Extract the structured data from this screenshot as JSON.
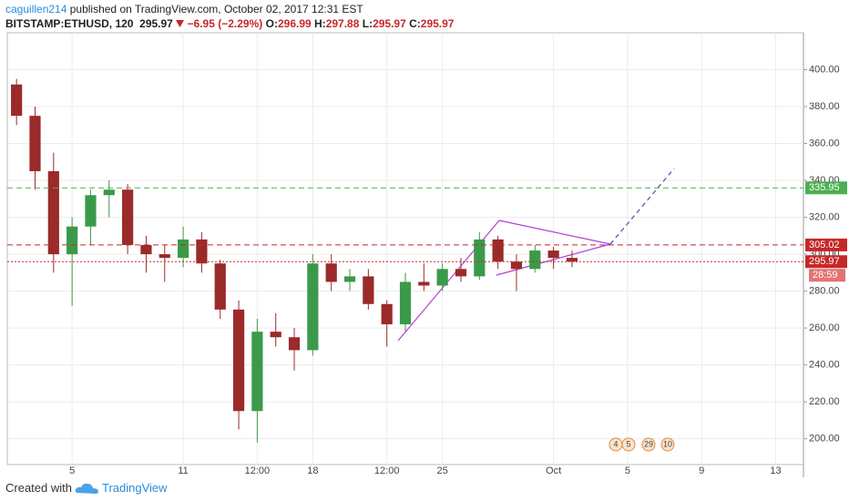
{
  "header": {
    "author": "caguillen214",
    "published": "published on TradingView.com, October 02, 2017 12:31 EST"
  },
  "chart_data": {
    "type": "candlestick",
    "quote": {
      "symbol": "BITSTAMP:ETHUSD, 120",
      "last": 295.97,
      "change": "−6.95",
      "change_pct": "(−2.29%)",
      "open_label": "O:",
      "open": 296.99,
      "high_label": "H:",
      "high": 297.88,
      "low_label": "L:",
      "low": 295.97,
      "close_label": "C:",
      "close": 295.97
    },
    "categories": [
      null,
      null,
      null,
      "5",
      null,
      null,
      null,
      null,
      null,
      "11",
      null,
      null,
      null,
      "12:00",
      null,
      null,
      "18",
      null,
      null,
      null,
      "12:00",
      null,
      null,
      "25",
      null,
      null,
      null,
      null,
      null,
      "Oct",
      null,
      null,
      null,
      "5",
      null,
      null,
      null,
      "9",
      null,
      null,
      null,
      "13",
      null
    ],
    "open": [
      392,
      375,
      345,
      300,
      315,
      332,
      335,
      305,
      300,
      298,
      308,
      295,
      270,
      215,
      258,
      255,
      248,
      295,
      285,
      288,
      273,
      262,
      285,
      283,
      292,
      288,
      308,
      296,
      292,
      302,
      298,
      null,
      null,
      null,
      null,
      null,
      null,
      null,
      null,
      null,
      null,
      null,
      null
    ],
    "high": [
      395,
      380,
      355,
      320,
      335,
      340,
      338,
      310,
      305,
      315,
      312,
      297,
      275,
      265,
      268,
      260,
      300,
      300,
      292,
      292,
      275,
      290,
      295,
      295,
      298,
      312,
      310,
      300,
      305,
      304,
      302,
      null,
      null,
      null,
      null,
      null,
      null,
      null,
      null,
      null,
      null,
      null,
      null
    ],
    "low": [
      370,
      335,
      290,
      272,
      305,
      320,
      300,
      290,
      285,
      293,
      290,
      265,
      205,
      198,
      250,
      237,
      245,
      280,
      280,
      270,
      250,
      258,
      280,
      280,
      285,
      286,
      292,
      280,
      290,
      292,
      293,
      null,
      null,
      null,
      null,
      null,
      null,
      null,
      null,
      null,
      null,
      null,
      null
    ],
    "close": [
      375,
      345,
      300,
      315,
      332,
      335,
      305,
      300,
      298,
      308,
      295,
      270,
      215,
      258,
      255,
      248,
      295,
      285,
      288,
      273,
      262,
      285,
      283,
      292,
      288,
      308,
      296,
      292,
      302,
      298,
      295.97,
      null,
      null,
      null,
      null,
      null,
      null,
      null,
      null,
      null,
      null,
      null,
      null
    ],
    "up_color": "#3a9a4a",
    "down_color": "#9b2a2a",
    "ylim": [
      186,
      420
    ],
    "yticks": [
      {
        "value": 200,
        "label": "200.00"
      },
      {
        "value": 220,
        "label": "220.00"
      },
      {
        "value": 240,
        "label": "240.00"
      },
      {
        "value": 260,
        "label": "260.00"
      },
      {
        "value": 280,
        "label": "280.00"
      },
      {
        "value": 300,
        "label": "300.00"
      },
      {
        "value": 320,
        "label": "320.00"
      },
      {
        "value": 340,
        "label": "340.00"
      },
      {
        "value": 360,
        "label": "360.00"
      },
      {
        "value": 380,
        "label": "380.00"
      },
      {
        "value": 400,
        "label": "400.00"
      }
    ],
    "grid": true,
    "levels": [
      {
        "value": 335.95,
        "color": "#4caf50",
        "style": "dashed"
      },
      {
        "value": 305.02,
        "color": "#c62828",
        "style": "dashed"
      },
      {
        "value": 295.97,
        "color": "#c62828",
        "style": "dotted"
      }
    ],
    "countdown": "28:59",
    "events": [
      "4",
      "5",
      "29",
      "10"
    ]
  },
  "footer": {
    "created": "Created with",
    "brand": "TradingView"
  }
}
